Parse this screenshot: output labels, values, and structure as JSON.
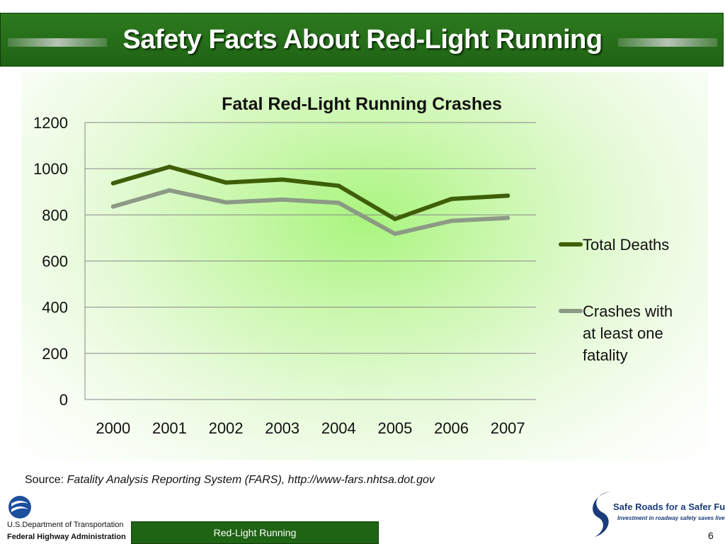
{
  "slide": {
    "title": "Safety Facts About Red-Light Running",
    "source_prefix": "Source: ",
    "source_text": "Fatality Analysis Reporting System (FARS), http://www-fars.nhtsa.dot.gov",
    "footer_label": "Red-Light Running",
    "page_number": "6",
    "dot_line1": "U.S.Department of Transportation",
    "dot_line2": "Federal Highway Administration",
    "logo_title": "Safe Roads for a Safer Future",
    "logo_tagline": "Investment in roadway safety saves lives"
  },
  "colors": {
    "header_green": "#1f6314",
    "total_deaths": "#3f5e08",
    "crashes": "#8c9a86",
    "grid": "#888888"
  },
  "chart_data": {
    "type": "line",
    "title": "Fatal Red-Light Running Crashes",
    "xlabel": "",
    "ylabel": "",
    "categories": [
      "2000",
      "2001",
      "2002",
      "2003",
      "2004",
      "2005",
      "2006",
      "2007"
    ],
    "ylim": [
      0,
      1200
    ],
    "yticks": [
      0,
      200,
      400,
      600,
      800,
      1000,
      1200
    ],
    "grid": true,
    "legend_position": "right",
    "series": [
      {
        "name": "Total Deaths",
        "values": [
          937,
          1008,
          940,
          953,
          926,
          782,
          869,
          883
        ]
      },
      {
        "name": "Crashes with at least one fatality",
        "legend_lines": [
          "Crashes with",
          "at least one",
          "fatality"
        ],
        "values": [
          836,
          906,
          854,
          866,
          852,
          718,
          774,
          787
        ]
      }
    ]
  }
}
